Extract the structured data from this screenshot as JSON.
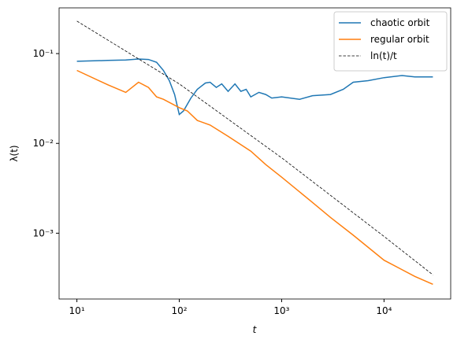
{
  "chart_data": {
    "type": "line",
    "x_label": "t",
    "y_label": "λ(t)",
    "xscale": "log",
    "yscale": "log",
    "xlim": [
      6.7,
      44800
    ],
    "ylim": [
      0.000185,
      0.323
    ],
    "xticks": [
      {
        "value": 10,
        "label": "10¹"
      },
      {
        "value": 100,
        "label": "10²"
      },
      {
        "value": 1000,
        "label": "10³"
      },
      {
        "value": 10000,
        "label": "10⁴"
      }
    ],
    "yticks": [
      {
        "value": 0.001,
        "label": "10⁻³"
      },
      {
        "value": 0.01,
        "label": "10⁻²"
      },
      {
        "value": 0.1,
        "label": "10⁻¹"
      }
    ],
    "legend": "upper right",
    "series": [
      {
        "name": "chaotic orbit",
        "color": "#1f77b4",
        "dashed": false,
        "x": [
          10,
          20,
          30,
          40,
          50,
          60,
          70,
          80,
          90,
          100,
          110,
          130,
          150,
          180,
          200,
          230,
          260,
          300,
          350,
          400,
          450,
          500,
          600,
          700,
          800,
          1000,
          1500,
          2000,
          3000,
          4000,
          5000,
          7000,
          10000,
          15000,
          20000,
          30000
        ],
        "values": [
          0.082,
          0.084,
          0.085,
          0.087,
          0.086,
          0.08,
          0.065,
          0.05,
          0.035,
          0.021,
          0.023,
          0.032,
          0.04,
          0.047,
          0.048,
          0.042,
          0.046,
          0.038,
          0.046,
          0.038,
          0.04,
          0.033,
          0.037,
          0.035,
          0.032,
          0.033,
          0.031,
          0.034,
          0.035,
          0.04,
          0.048,
          0.05,
          0.054,
          0.057,
          0.055,
          0.055
        ]
      },
      {
        "name": "regular orbit",
        "color": "#ff7f0e",
        "dashed": false,
        "x": [
          10,
          20,
          30,
          40,
          50,
          60,
          70,
          100,
          120,
          150,
          200,
          300,
          500,
          700,
          1000,
          2000,
          3000,
          5000,
          10000,
          20000,
          30000
        ],
        "values": [
          0.065,
          0.045,
          0.037,
          0.048,
          0.042,
          0.033,
          0.031,
          0.025,
          0.023,
          0.018,
          0.016,
          0.012,
          0.0082,
          0.0058,
          0.0042,
          0.0022,
          0.0015,
          0.00095,
          0.0005,
          0.00033,
          0.00027
        ]
      },
      {
        "name": "ln(t)/t",
        "color": "#000000",
        "dashed": true,
        "x": [
          10,
          100,
          1000,
          10000,
          30000
        ],
        "values": [
          0.23,
          0.046,
          0.0069,
          0.00092,
          0.000344
        ]
      }
    ]
  }
}
